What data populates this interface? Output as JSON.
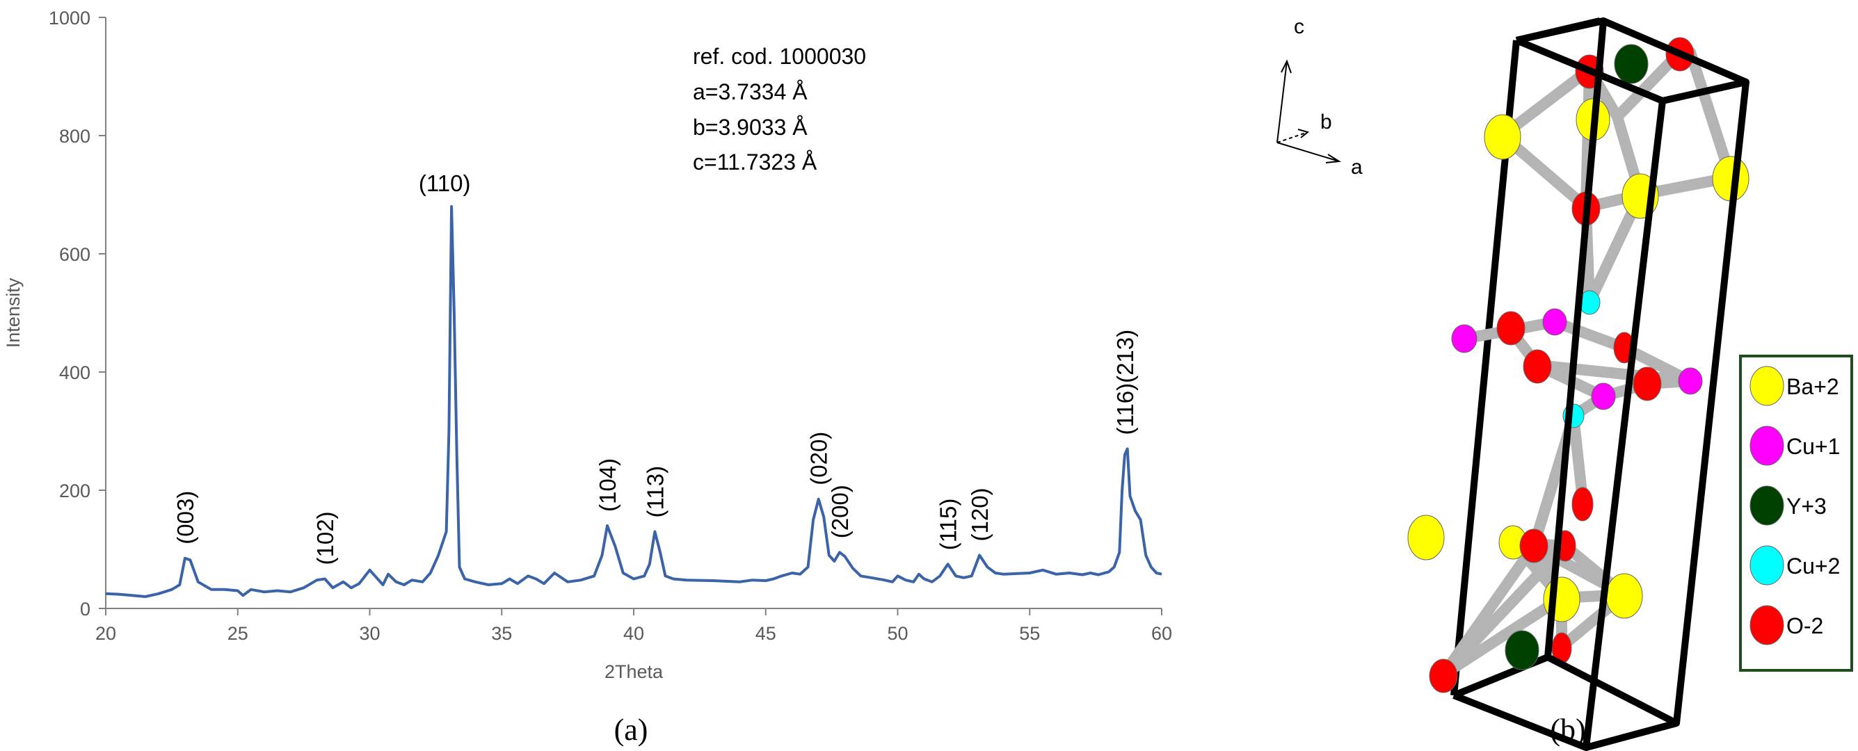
{
  "chart_data": {
    "type": "line",
    "xlabel": "2Theta",
    "ylabel": "Intensity",
    "xlim": [
      20,
      60
    ],
    "ylim": [
      0,
      1000
    ],
    "x_ticks": [
      "20",
      "25",
      "30",
      "35",
      "40",
      "45",
      "50",
      "55",
      "60"
    ],
    "y_ticks": [
      "0",
      "200",
      "400",
      "600",
      "800",
      "1000"
    ],
    "color": "#3b63a8",
    "grid": false,
    "series": [
      {
        "x": [
          20,
          20.5,
          21,
          21.5,
          22,
          22.5,
          22.8,
          23.0,
          23.2,
          23.5,
          24,
          24.5,
          25,
          25.2,
          25.5,
          26,
          26.5,
          27,
          27.5,
          28,
          28.3,
          28.6,
          29,
          29.3,
          29.6,
          30,
          30.2,
          30.5,
          30.7,
          31,
          31.3,
          31.6,
          32,
          32.3,
          32.6,
          32.9,
          33.0,
          33.1,
          33.2,
          33.3,
          33.4,
          33.6,
          34,
          34.5,
          35,
          35.3,
          35.6,
          36,
          36.3,
          36.6,
          37,
          37.5,
          38,
          38.5,
          38.8,
          39.0,
          39.3,
          39.6,
          40,
          40.4,
          40.6,
          40.8,
          41.0,
          41.2,
          41.5,
          42,
          43,
          44,
          44.5,
          45,
          45.3,
          45.6,
          46,
          46.3,
          46.6,
          46.8,
          47.0,
          47.2,
          47.4,
          47.6,
          47.8,
          48.0,
          48.3,
          48.6,
          49,
          49.5,
          49.8,
          50,
          50.3,
          50.6,
          50.8,
          51,
          51.3,
          51.6,
          51.9,
          52.2,
          52.5,
          52.8,
          53.1,
          53.4,
          53.7,
          54,
          55,
          55.5,
          56,
          56.5,
          57,
          57.3,
          57.6,
          58,
          58.2,
          58.4,
          58.5,
          58.6,
          58.7,
          58.8,
          59.0,
          59.2,
          59.4,
          59.6,
          59.8,
          60
        ],
        "y": [
          25,
          24,
          22,
          20,
          25,
          32,
          40,
          85,
          82,
          45,
          32,
          32,
          30,
          22,
          32,
          28,
          30,
          28,
          35,
          48,
          50,
          35,
          45,
          35,
          42,
          65,
          55,
          40,
          58,
          45,
          40,
          48,
          45,
          60,
          90,
          130,
          300,
          680,
          500,
          260,
          70,
          50,
          45,
          40,
          42,
          50,
          42,
          55,
          50,
          42,
          60,
          45,
          48,
          55,
          90,
          140,
          105,
          60,
          50,
          55,
          75,
          130,
          95,
          55,
          50,
          48,
          47,
          45,
          48,
          47,
          50,
          55,
          60,
          58,
          70,
          150,
          185,
          155,
          90,
          80,
          95,
          88,
          68,
          55,
          52,
          48,
          45,
          55,
          48,
          45,
          58,
          50,
          45,
          55,
          75,
          55,
          52,
          55,
          90,
          70,
          60,
          58,
          60,
          65,
          58,
          60,
          57,
          60,
          57,
          62,
          70,
          95,
          200,
          260,
          270,
          190,
          165,
          150,
          90,
          70,
          60,
          58
        ]
      }
    ],
    "peak_labels": [
      {
        "label": "(003)",
        "x": 23.0,
        "y": 85
      },
      {
        "label": "(102)",
        "x": 28.3,
        "y": 50
      },
      {
        "label": "(110)",
        "x": 33.1,
        "y": 680
      },
      {
        "label": "(104)",
        "x": 39.0,
        "y": 140
      },
      {
        "label": "(113)",
        "x": 40.8,
        "y": 130
      },
      {
        "label": "(020)",
        "x": 47.0,
        "y": 185
      },
      {
        "label": "(200)",
        "x": 47.8,
        "y": 95
      },
      {
        "label": "(115)",
        "x": 51.9,
        "y": 75
      },
      {
        "label": "(120)",
        "x": 53.1,
        "y": 90
      },
      {
        "label": "(116)(213)",
        "x": 58.6,
        "y": 270
      }
    ]
  },
  "annotation": {
    "ref": "ref. cod. 1000030",
    "a": "a=3.7334 Å",
    "b": "b=3.9033 Å",
    "c": "c=11.7323 Å"
  },
  "captions": {
    "left": "(a)",
    "right": "(b)"
  },
  "axes_labels": {
    "c": "c",
    "b": "b",
    "a": "a"
  },
  "legend": [
    {
      "label": "Ba+2",
      "color": "#ffff00"
    },
    {
      "label": "Cu+1",
      "color": "#ff00ff"
    },
    {
      "label": "Y+3",
      "color": "#004000"
    },
    {
      "label": "Cu+2",
      "color": "#00ffff"
    },
    {
      "label": "O-2",
      "color": "#ff0000"
    }
  ],
  "legend_border_color": "#1f4d1f"
}
